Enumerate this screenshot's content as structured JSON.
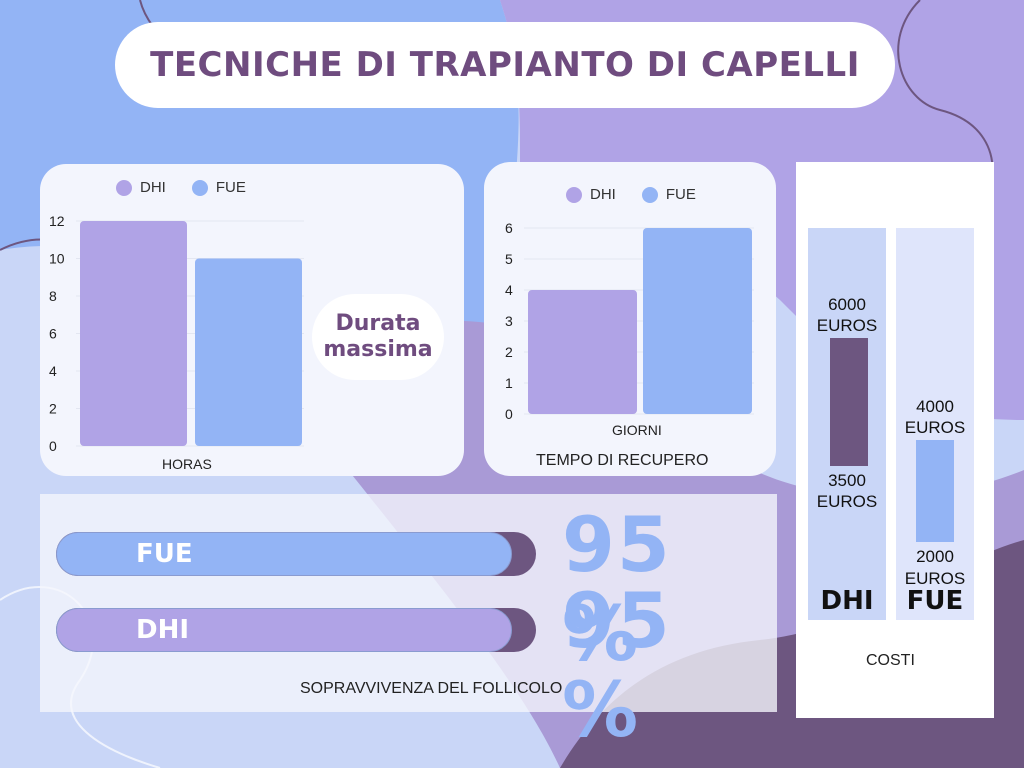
{
  "title": "TECNICHE DI TRAPIANTO DI CAPELLI",
  "colors": {
    "dhi": "#b0a3e6",
    "fue": "#93b4f5",
    "dark_purple": "#6d5680",
    "title": "#6f4c7f"
  },
  "callout": {
    "line1": "Durata",
    "line2": "massima"
  },
  "chart_data": [
    {
      "type": "bar",
      "categories": [
        "HORAS"
      ],
      "series": [
        {
          "name": "DHI",
          "values": [
            12
          ]
        },
        {
          "name": "FUE",
          "values": [
            10
          ]
        }
      ],
      "xlabel": "HORAS",
      "ylim": [
        0,
        12
      ],
      "yticks": [
        0,
        2,
        4,
        6,
        8,
        10,
        12
      ],
      "legend": "top"
    },
    {
      "type": "bar",
      "categories": [
        "GIORNI"
      ],
      "series": [
        {
          "name": "DHI",
          "values": [
            4
          ]
        },
        {
          "name": "FUE",
          "values": [
            6
          ]
        }
      ],
      "xlabel": "GIORNI",
      "title": "TEMPO DI RECUPERO",
      "ylim": [
        0,
        6
      ],
      "yticks": [
        0,
        1,
        2,
        3,
        4,
        5,
        6
      ],
      "legend": "top"
    },
    {
      "type": "bar",
      "title": "SOPRAVVIVENZA DEL FOLLICOLO",
      "categories": [
        "FUE",
        "DHI"
      ],
      "values": [
        95,
        95
      ],
      "labels": [
        "95 %",
        "95 %"
      ],
      "ylim": [
        0,
        100
      ]
    },
    {
      "type": "bar",
      "title": "COSTI",
      "categories": [
        "DHI",
        "FUE"
      ],
      "ranges": [
        {
          "name": "DHI",
          "low": 3500,
          "high": 6000,
          "low_label": [
            "3500",
            "EUROS"
          ],
          "high_label": [
            "6000",
            "EUROS"
          ]
        },
        {
          "name": "FUE",
          "low": 2000,
          "high": 4000,
          "low_label": [
            "2000",
            "EUROS"
          ],
          "high_label": [
            "4000",
            "EUROS"
          ]
        }
      ],
      "ylim": [
        0,
        7000
      ]
    }
  ]
}
